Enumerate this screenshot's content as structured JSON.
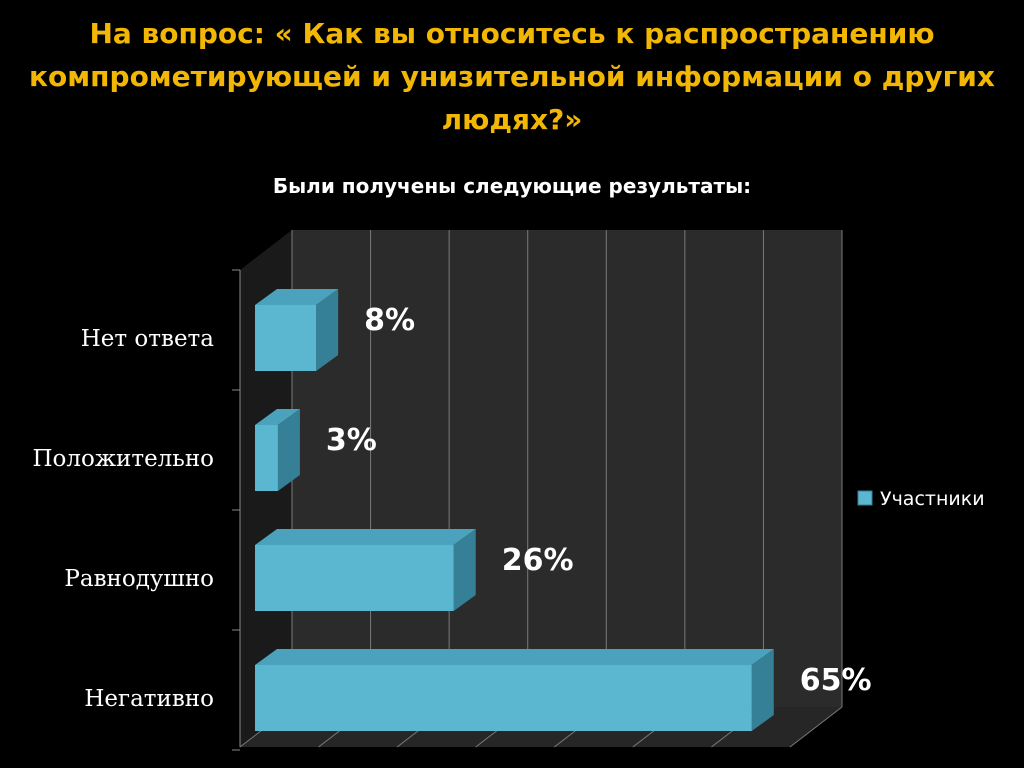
{
  "slide": {
    "title": "На вопрос: « Как вы относитесь к распространению компрометирующей и унизительной информации о других людях?»",
    "subtitle": "Были получены следующие результаты:"
  },
  "chart_data": {
    "type": "bar",
    "orientation": "horizontal",
    "style": "3d",
    "categories": [
      "Нет ответа",
      "Положительно",
      "Равнодушно",
      "Негативно"
    ],
    "series": [
      {
        "name": "Участники",
        "values": [
          8,
          3,
          26,
          65
        ],
        "labels": [
          "8%",
          "3%",
          "26%",
          "65%"
        ],
        "color": "#5bb6d0"
      }
    ],
    "xlim": [
      0,
      70
    ],
    "grid": true,
    "legend": "right",
    "colors": {
      "background": "#000000",
      "title": "#f2b705",
      "wall": "#2b2b2b",
      "floor": "#262626"
    }
  }
}
